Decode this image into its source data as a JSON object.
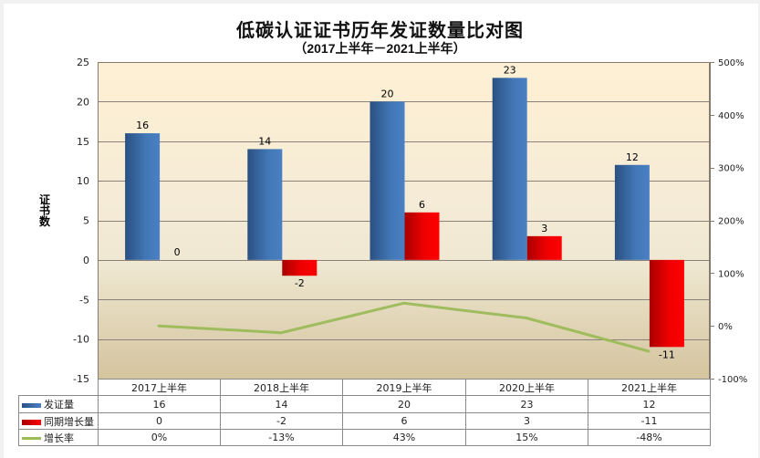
{
  "header": {
    "title": "低碳认证证书历年发证数量比对图",
    "subtitle": "（2017上半年－2021上半年）"
  },
  "chart_data": {
    "type": "bar",
    "title": "低碳认证证书历年发证数量比对图",
    "subtitle": "（2017上半年－2021上半年）",
    "xlabel": "",
    "ylabel": "证书数",
    "categories": [
      "2017上半年",
      "2018上半年",
      "2019上半年",
      "2020上半年",
      "2021上半年"
    ],
    "series": [
      {
        "name": "发证量",
        "type": "bar",
        "axis": "left",
        "values": [
          16,
          14,
          20,
          23,
          12
        ],
        "display": [
          "16",
          "14",
          "20",
          "23",
          "12"
        ],
        "color": "#4A7EBB"
      },
      {
        "name": "同期增长量",
        "type": "bar",
        "axis": "left",
        "values": [
          0,
          -2,
          6,
          3,
          -11
        ],
        "display": [
          "0",
          "-2",
          "6",
          "3",
          "-11"
        ],
        "color": "#E00000"
      },
      {
        "name": "增长率",
        "type": "line",
        "axis": "right",
        "values": [
          0,
          -13,
          43,
          15,
          -48
        ],
        "display": [
          "0%",
          "-13%",
          "43%",
          "15%",
          "-48%"
        ],
        "color": "#9BBB59"
      }
    ],
    "ylim": [
      -15,
      25
    ],
    "y_ticks": [
      25,
      20,
      15,
      10,
      5,
      0,
      -5,
      -10,
      -15
    ],
    "y_tick_labels": [
      "25",
      "20",
      "15",
      "10",
      "5",
      "0",
      "-5",
      "-10",
      "-15"
    ],
    "y2lim": [
      -100,
      500
    ],
    "y2_ticks": [
      500,
      400,
      300,
      200,
      100,
      0,
      -100
    ],
    "y2_tick_labels": [
      "500%",
      "400%",
      "300%",
      "200%",
      "100%",
      "0%",
      "-100%"
    ],
    "grid": true,
    "legend": "data-table (bottom)",
    "data_labels": true
  }
}
